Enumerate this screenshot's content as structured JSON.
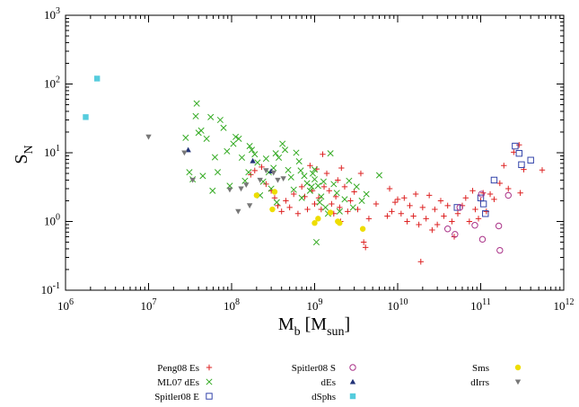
{
  "chart_data": {
    "type": "scatter",
    "xlabel": "M",
    "xlabel_sub": "b",
    "xlabel_rest_open": " [M",
    "xlabel_rest_sub": "sun",
    "xlabel_rest_close": "]",
    "ylabel": "S",
    "ylabel_sub": "N",
    "xscale": "log",
    "yscale": "log",
    "xlim": [
      1000000,
      1000000000000
    ],
    "ylim": [
      0.1,
      1000
    ],
    "grid": false,
    "legend_position": "bottom",
    "x_ticks": [
      {
        "base": "10",
        "exp": "6"
      },
      {
        "base": "10",
        "exp": "7"
      },
      {
        "base": "10",
        "exp": "8"
      },
      {
        "base": "10",
        "exp": "9"
      },
      {
        "base": "10",
        "exp": "10"
      },
      {
        "base": "10",
        "exp": "11"
      },
      {
        "base": "10",
        "exp": "12"
      }
    ],
    "y_ticks": [
      {
        "base": "10",
        "exp": "-1"
      },
      {
        "base": "10",
        "exp": "0"
      },
      {
        "base": "10",
        "exp": "1"
      },
      {
        "base": "10",
        "exp": "2"
      },
      {
        "base": "10",
        "exp": "3"
      }
    ],
    "series": [
      {
        "name": "Peng08 Es",
        "marker": "plus",
        "color": "#dd2222",
        "points": [
          [
            170000000.0,
            4.8
          ],
          [
            190000000.0,
            5.5
          ],
          [
            230000000.0,
            6.2
          ],
          [
            260000000.0,
            3.5
          ],
          [
            300000000.0,
            2.8
          ],
          [
            330000000.0,
            2.2
          ],
          [
            360000000.0,
            1.7
          ],
          [
            400000000.0,
            1.4
          ],
          [
            450000000.0,
            2.0
          ],
          [
            500000000.0,
            1.6
          ],
          [
            560000000.0,
            2.5
          ],
          [
            630000000.0,
            1.3
          ],
          [
            700000000.0,
            3.2
          ],
          [
            760000000.0,
            2.3
          ],
          [
            820000000.0,
            1.5
          ],
          [
            880000000.0,
            6.5
          ],
          [
            940000000.0,
            2.8
          ],
          [
            1000000000.0,
            1.8
          ],
          [
            1060000000.0,
            5.8
          ],
          [
            1120000000.0,
            2.2
          ],
          [
            1200000000.0,
            1.5
          ],
          [
            1250000000.0,
            9.5
          ],
          [
            1300000000.0,
            3.2
          ],
          [
            1400000000.0,
            5.0
          ],
          [
            1500000000.0,
            2.8
          ],
          [
            1600000000.0,
            1.8
          ],
          [
            1700000000.0,
            1.3
          ],
          [
            1800000000.0,
            2.3
          ],
          [
            1900000000.0,
            4.0
          ],
          [
            2000000000.0,
            1.6
          ],
          [
            2100000000.0,
            6.0
          ],
          [
            2300000000.0,
            3.2
          ],
          [
            2500000000.0,
            1.4
          ],
          [
            2700000000.0,
            2.0
          ],
          [
            3000000000.0,
            2.7
          ],
          [
            3300000000.0,
            1.5
          ],
          [
            3600000000.0,
            5.0
          ],
          [
            3900000000.0,
            0.5
          ],
          [
            4100000000.0,
            0.42
          ],
          [
            4500000000.0,
            1.1
          ],
          [
            5500000000.0,
            1.8
          ],
          [
            7500000000.0,
            1.2
          ],
          [
            8000000000.0,
            3.0
          ],
          [
            8500000000.0,
            1.4
          ],
          [
            9300000000.0,
            1.9
          ],
          [
            10000000000.0,
            2.1
          ],
          [
            11000000000.0,
            1.3
          ],
          [
            12000000000.0,
            2.2
          ],
          [
            13000000000.0,
            1.0
          ],
          [
            14000000000.0,
            1.7
          ],
          [
            15500000000.0,
            1.2
          ],
          [
            16500000000.0,
            2.5
          ],
          [
            18000000000.0,
            0.9
          ],
          [
            19000000000.0,
            0.26
          ],
          [
            20000000000.0,
            1.6
          ],
          [
            22000000000.0,
            1.1
          ],
          [
            24000000000.0,
            2.4
          ],
          [
            26000000000.0,
            0.75
          ],
          [
            28000000000.0,
            1.5
          ],
          [
            30000000000.0,
            0.9
          ],
          [
            33000000000.0,
            2.0
          ],
          [
            36000000000.0,
            1.2
          ],
          [
            40000000000.0,
            1.7
          ],
          [
            45000000000.0,
            1.0
          ],
          [
            48000000000.0,
            0.6
          ],
          [
            53000000000.0,
            1.3
          ],
          [
            60000000000.0,
            1.7
          ],
          [
            66000000000.0,
            2.2
          ],
          [
            73000000000.0,
            1.0
          ],
          [
            80000000000.0,
            2.8
          ],
          [
            86000000000.0,
            1.5
          ],
          [
            94000000000.0,
            1.1
          ],
          [
            100000000000.0,
            2.0
          ],
          [
            107000000000.0,
            2.6
          ],
          [
            117000000000.0,
            1.4
          ],
          [
            130000000000.0,
            2.5
          ],
          [
            145000000000.0,
            2.1
          ],
          [
            170000000000.0,
            3.6
          ],
          [
            190000000000.0,
            6.5
          ],
          [
            215000000000.0,
            3.0
          ],
          [
            250000000000.0,
            10.2
          ],
          [
            290000000000.0,
            13.0
          ],
          [
            300000000000.0,
            2.6
          ],
          [
            330000000000.0,
            5.7
          ],
          [
            550000000000.0,
            5.6
          ],
          [
            2050000000.0,
            1.0
          ]
        ]
      },
      {
        "name": "ML07 dEs",
        "marker": "cross",
        "color": "#33aa22",
        "points": [
          [
            28000000.0,
            16.5
          ],
          [
            31000000.0,
            5.2
          ],
          [
            34000000.0,
            4.1
          ],
          [
            37000000.0,
            34
          ],
          [
            38000000.0,
            52
          ],
          [
            40000000.0,
            19.5
          ],
          [
            43000000.0,
            21
          ],
          [
            45000000.0,
            4.6
          ],
          [
            50000000.0,
            16
          ],
          [
            56000000.0,
            33
          ],
          [
            59000000.0,
            2.8
          ],
          [
            63000000.0,
            8.6
          ],
          [
            68000000.0,
            5.2
          ],
          [
            73000000.0,
            30
          ],
          [
            80000000.0,
            23
          ],
          [
            88000000.0,
            10.5
          ],
          [
            95000000.0,
            3.3
          ],
          [
            105000000.0,
            13.5
          ],
          [
            112000000.0,
            17
          ],
          [
            122000000.0,
            16
          ],
          [
            133000000.0,
            8.5
          ],
          [
            145000000.0,
            3.9
          ],
          [
            160000000.0,
            5.2
          ],
          [
            175000000.0,
            11
          ],
          [
            190000000.0,
            9.5
          ],
          [
            205000000.0,
            7.2
          ],
          [
            220000000.0,
            2.4
          ],
          [
            240000000.0,
            3.8
          ],
          [
            260000000.0,
            8.2
          ],
          [
            280000000.0,
            5.2
          ],
          [
            300000000.0,
            3.0
          ],
          [
            320000000.0,
            6.0
          ],
          [
            350000000.0,
            1.9
          ],
          [
            370000000.0,
            8.5
          ],
          [
            410000000.0,
            13.5
          ],
          [
            440000000.0,
            11
          ],
          [
            480000000.0,
            5.6
          ],
          [
            520000000.0,
            4.4
          ],
          [
            560000000.0,
            2.9
          ],
          [
            600000000.0,
            10
          ],
          [
            650000000.0,
            7.5
          ],
          [
            700000000.0,
            2.2
          ],
          [
            750000000.0,
            4.6
          ],
          [
            810000000.0,
            3.6
          ],
          [
            880000000.0,
            2.8
          ],
          [
            950000000.0,
            5.0
          ],
          [
            1000000000.0,
            4.1
          ],
          [
            1050000000.0,
            0.5
          ],
          [
            1100000000.0,
            3.3
          ],
          [
            1150000000.0,
            1.9
          ],
          [
            1200000000.0,
            2.3
          ],
          [
            1280000000.0,
            3.8
          ],
          [
            1350000000.0,
            1.6
          ],
          [
            1450000000.0,
            1.3
          ],
          [
            1550000000.0,
            9.8
          ],
          [
            1700000000.0,
            3.5
          ],
          [
            1850000000.0,
            2.6
          ],
          [
            2000000000.0,
            1.4
          ],
          [
            2300000000.0,
            2.1
          ],
          [
            2600000000.0,
            3.9
          ],
          [
            2900000000.0,
            1.6
          ],
          [
            3200000000.0,
            3.2
          ],
          [
            3700000000.0,
            2.0
          ],
          [
            4200000000.0,
            2.5
          ],
          [
            6000000000.0,
            4.7
          ],
          [
            1000000000.0,
            5.7
          ],
          [
            920000000.0,
            3.2
          ],
          [
            680000000.0,
            5.5
          ],
          [
            340000000.0,
            9.8
          ],
          [
            165000000.0,
            12.5
          ]
        ]
      },
      {
        "name": "Spitler08 E",
        "marker": "square",
        "color": "#3344aa",
        "points": [
          [
            52000000000.0,
            1.6
          ],
          [
            100000000000.0,
            2.2
          ],
          [
            108000000000.0,
            1.8
          ],
          [
            114000000000.0,
            1.3
          ],
          [
            145000000000.0,
            4.0
          ],
          [
            260000000000.0,
            12.5
          ],
          [
            290000000000.0,
            9.8
          ],
          [
            310000000000.0,
            6.7
          ],
          [
            400000000000.0,
            7.8
          ]
        ]
      },
      {
        "name": "Spitler08 S",
        "marker": "circle",
        "color": "#aa3388",
        "points": [
          [
            40000000000.0,
            0.78
          ],
          [
            49000000000.0,
            0.65
          ],
          [
            56000000000.0,
            1.6
          ],
          [
            85000000000.0,
            0.88
          ],
          [
            102000000000.0,
            2.5
          ],
          [
            105000000000.0,
            0.55
          ],
          [
            170000000000.0,
            0.38
          ],
          [
            165000000000.0,
            0.86
          ],
          [
            215000000000.0,
            2.4
          ]
        ]
      },
      {
        "name": "dEs",
        "marker": "triangle-up",
        "color": "#223377",
        "points": [
          [
            30000000.0,
            11
          ],
          [
            180000000.0,
            7.6
          ],
          [
            300000000.0,
            5.4
          ]
        ]
      },
      {
        "name": "dSphs",
        "marker": "filled-square",
        "color": "#55ccdd",
        "points": [
          [
            1750000.0,
            33
          ],
          [
            2400000.0,
            120
          ]
        ]
      },
      {
        "name": "Sms",
        "marker": "filled-circle",
        "color": "#eedd00",
        "points": [
          [
            200000000.0,
            2.4
          ],
          [
            310000000.0,
            1.5
          ],
          [
            330000000.0,
            2.7
          ],
          [
            1000000000.0,
            0.95
          ],
          [
            1100000000.0,
            1.1
          ],
          [
            1550000000.0,
            1.35
          ],
          [
            1900000000.0,
            1.0
          ],
          [
            2000000000.0,
            0.95
          ],
          [
            3800000000.0,
            0.78
          ]
        ]
      },
      {
        "name": "dIrrs",
        "marker": "triangle-down",
        "color": "#777777",
        "points": [
          [
            10000000.0,
            17
          ],
          [
            27000000.0,
            10
          ],
          [
            34000000.0,
            4.0
          ],
          [
            95000000.0,
            2.9
          ],
          [
            120000000.0,
            1.4
          ],
          [
            130000000.0,
            3.0
          ],
          [
            150000000.0,
            3.4
          ],
          [
            165000000.0,
            1.7
          ],
          [
            220000000.0,
            4.0
          ],
          [
            260000000.0,
            5.5
          ],
          [
            320000000.0,
            5.1
          ],
          [
            360000000.0,
            4.0
          ],
          [
            420000000.0,
            4.2
          ]
        ]
      }
    ]
  }
}
